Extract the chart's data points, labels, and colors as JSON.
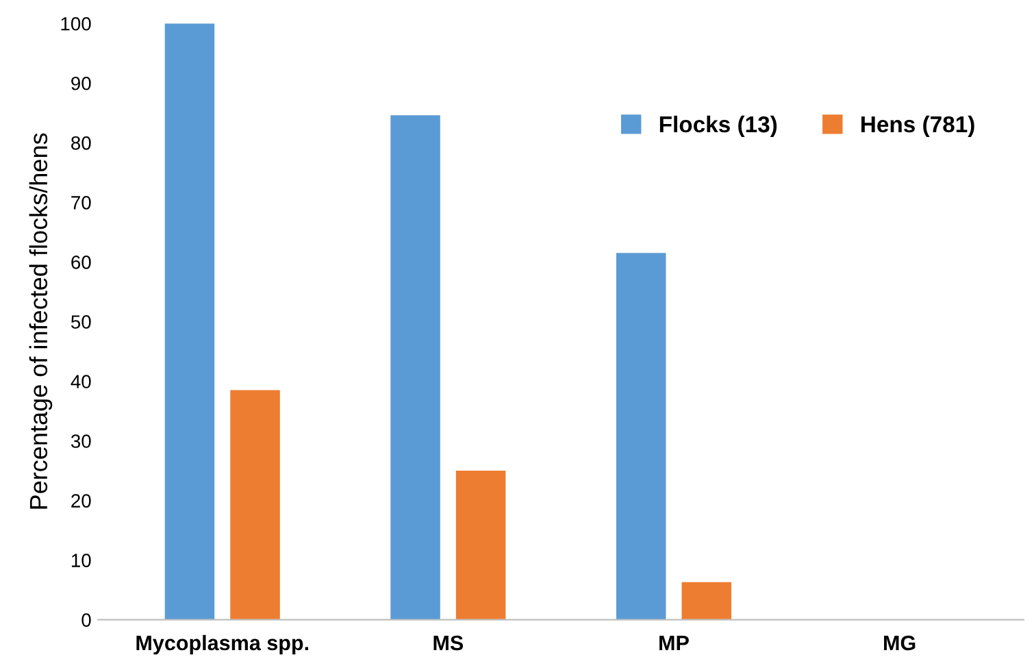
{
  "chart_data": {
    "type": "bar",
    "ylabel": "Percentage of infected flocks/hens",
    "categories": [
      "Mycoplasma spp.",
      "MS",
      "MP",
      "MG"
    ],
    "series": [
      {
        "name": "Flocks (13)",
        "color": "#5b9bd5",
        "values": [
          100,
          84.6,
          61.5,
          0
        ]
      },
      {
        "name": "Hens (781)",
        "color": "#ed7d31",
        "values": [
          38.5,
          25,
          6.3,
          0
        ]
      }
    ],
    "ylim": [
      0,
      100
    ],
    "yticks": [
      0,
      10,
      20,
      30,
      40,
      50,
      60,
      70,
      80,
      90,
      100
    ],
    "grid": false,
    "legend": "top right"
  }
}
